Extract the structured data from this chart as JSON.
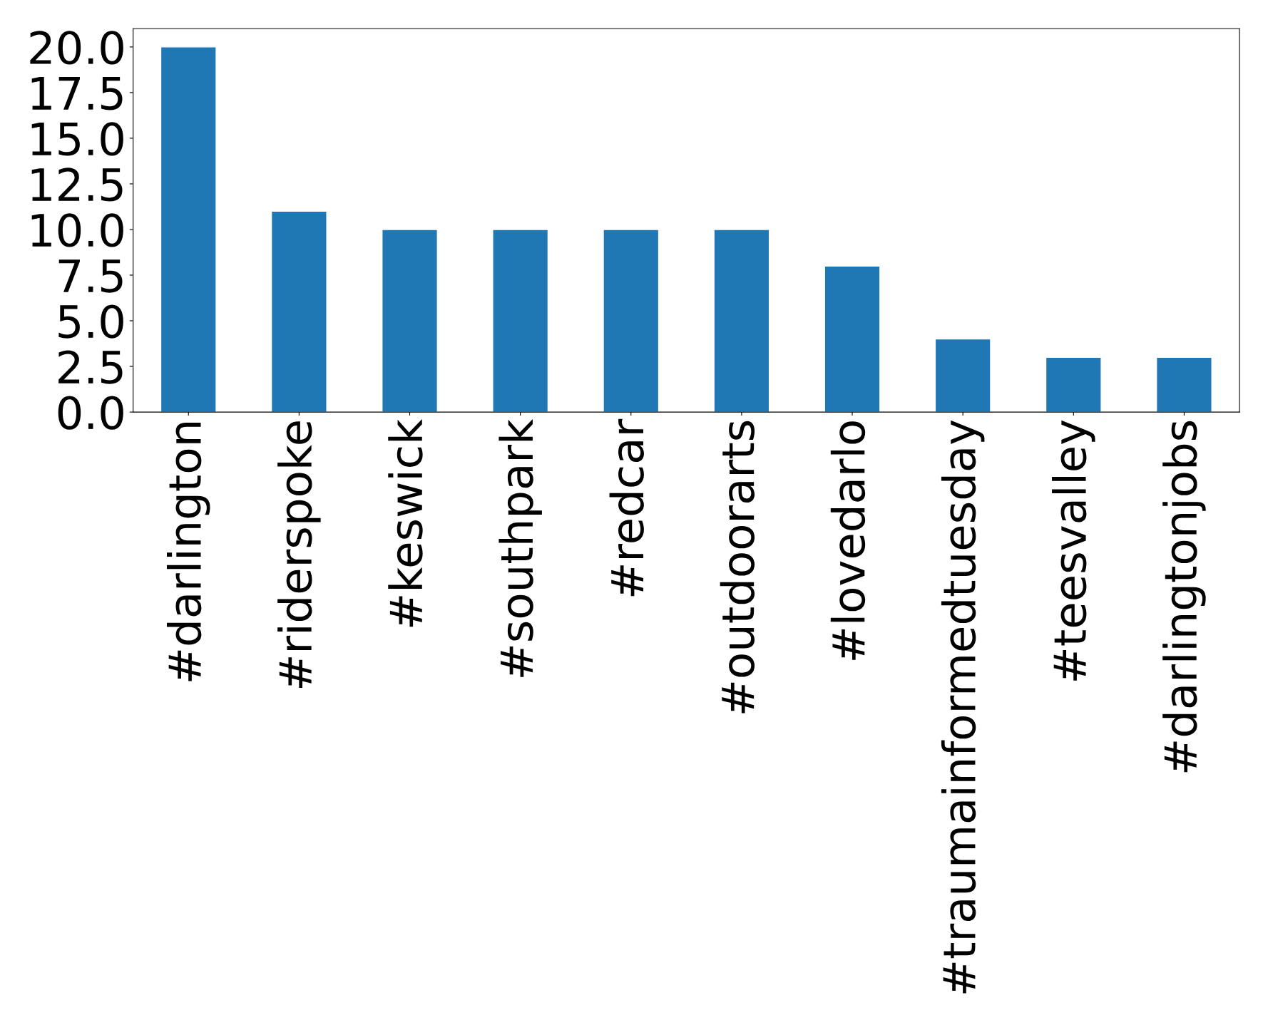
{
  "chart_data": {
    "type": "bar",
    "categories": [
      "#darlington",
      "#riderspoke",
      "#keswick",
      "#southpark",
      "#redcar",
      "#outdoorarts",
      "#lovedarlo",
      "#traumainformedtuesday",
      "#teesvalley",
      "#darlingtonjobs"
    ],
    "values": [
      20,
      11,
      10,
      10,
      10,
      10,
      8,
      4,
      3,
      3
    ],
    "color": "#1f77b4",
    "ylim": [
      0,
      21
    ],
    "yticks": [
      {
        "value": 0,
        "label": "0.0"
      },
      {
        "value": 2.5,
        "label": "2.5"
      },
      {
        "value": 5,
        "label": "5.0"
      },
      {
        "value": 7.5,
        "label": "7.5"
      },
      {
        "value": 10,
        "label": "10.0"
      },
      {
        "value": 12.5,
        "label": "12.5"
      },
      {
        "value": 15,
        "label": "15.0"
      },
      {
        "value": 17.5,
        "label": "17.5"
      },
      {
        "value": 20,
        "label": "20.0"
      }
    ],
    "grid": false
  }
}
